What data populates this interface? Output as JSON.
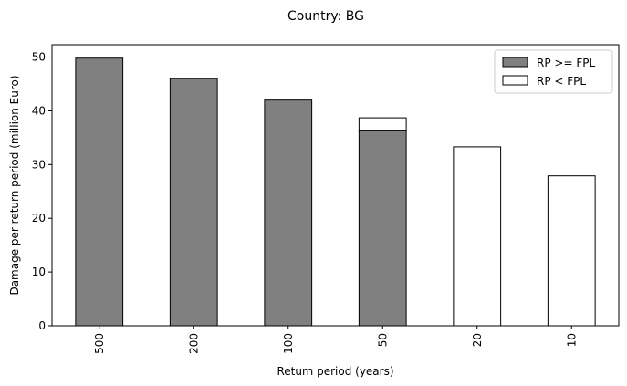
{
  "chart_data": {
    "type": "bar",
    "title": "Country: BG",
    "xlabel": "Return period (years)",
    "ylabel": "Damage per return period (million Euro)",
    "categories": [
      "500",
      "200",
      "100",
      "50",
      "20",
      "10"
    ],
    "ylim": [
      0,
      52.3
    ],
    "yticks": [
      0,
      10,
      20,
      30,
      40,
      50
    ],
    "stacked": true,
    "grid": false,
    "legend_position": "top-right",
    "series": [
      {
        "name": "RP >= FPL",
        "color": "#808080",
        "values": [
          49.8,
          46.0,
          42.0,
          36.3,
          0,
          0
        ]
      },
      {
        "name": "RP < FPL",
        "color": "#ffffff",
        "values": [
          0,
          0,
          0,
          2.4,
          33.3,
          27.9
        ]
      }
    ]
  }
}
